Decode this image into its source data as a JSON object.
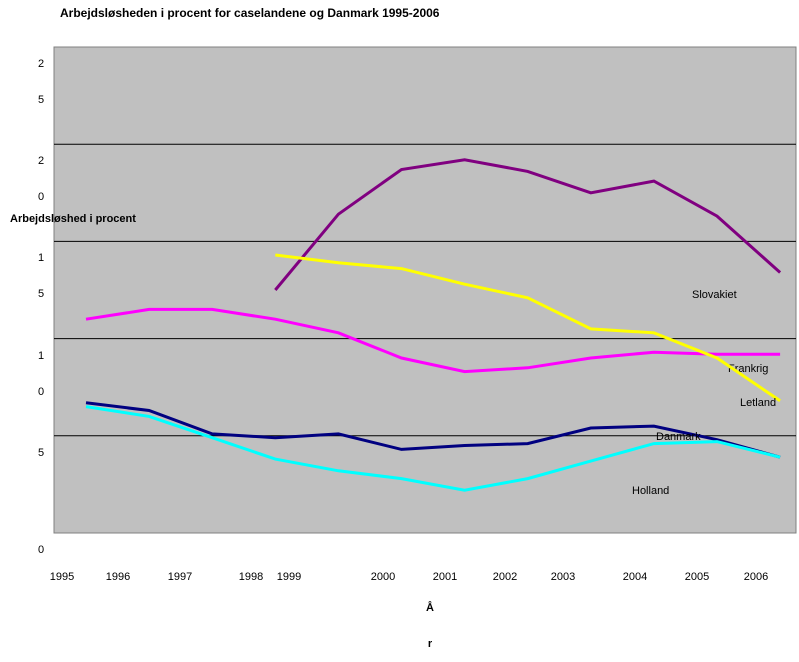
{
  "chart_data": {
    "type": "line",
    "title": "Arbejdsløsheden i procent for caselandene og Danmark 1995-2006",
    "y_label": "Arbejdsløshed i procent",
    "x_label": "Å\nr",
    "categories": [
      "1995",
      "1996",
      "1997",
      "1998",
      "1999",
      "2000",
      "2001",
      "2002",
      "2003",
      "2004",
      "2005",
      "2006"
    ],
    "ylim": [
      0,
      25
    ],
    "yticks": [
      {
        "value": 0,
        "label": "0"
      },
      {
        "value": 5,
        "label": "5"
      },
      {
        "value": 10,
        "label": "1\n0"
      },
      {
        "value": 15,
        "label": "1\n5"
      },
      {
        "value": 20,
        "label": "2\n0"
      },
      {
        "value": 25,
        "label": "2\n5"
      }
    ],
    "grid": true,
    "series": [
      {
        "name": "Slovakiet",
        "color": "#800080",
        "values": [
          null,
          null,
          null,
          12.5,
          16.4,
          18.7,
          19.2,
          18.6,
          17.5,
          18.1,
          16.3,
          13.4
        ]
      },
      {
        "name": "Frankrig",
        "color": "#ff00ff",
        "values": [
          11.0,
          11.5,
          11.5,
          11.0,
          10.3,
          9.0,
          8.3,
          8.5,
          9.0,
          9.3,
          9.2,
          9.2
        ]
      },
      {
        "name": "Letland",
        "color": "#ffff00",
        "values": [
          null,
          null,
          null,
          14.3,
          13.9,
          13.6,
          12.8,
          12.1,
          10.5,
          10.3,
          9.0,
          6.8
        ]
      },
      {
        "name": "Danmark",
        "color": "#000080",
        "values": [
          6.7,
          6.3,
          5.1,
          4.9,
          5.1,
          4.3,
          4.5,
          4.6,
          5.4,
          5.5,
          4.8,
          3.9
        ]
      },
      {
        "name": "Holland",
        "color": "#00ffff",
        "values": [
          6.5,
          6.0,
          4.9,
          3.8,
          3.2,
          2.8,
          2.2,
          2.8,
          3.7,
          4.6,
          4.7,
          3.9
        ]
      }
    ]
  }
}
